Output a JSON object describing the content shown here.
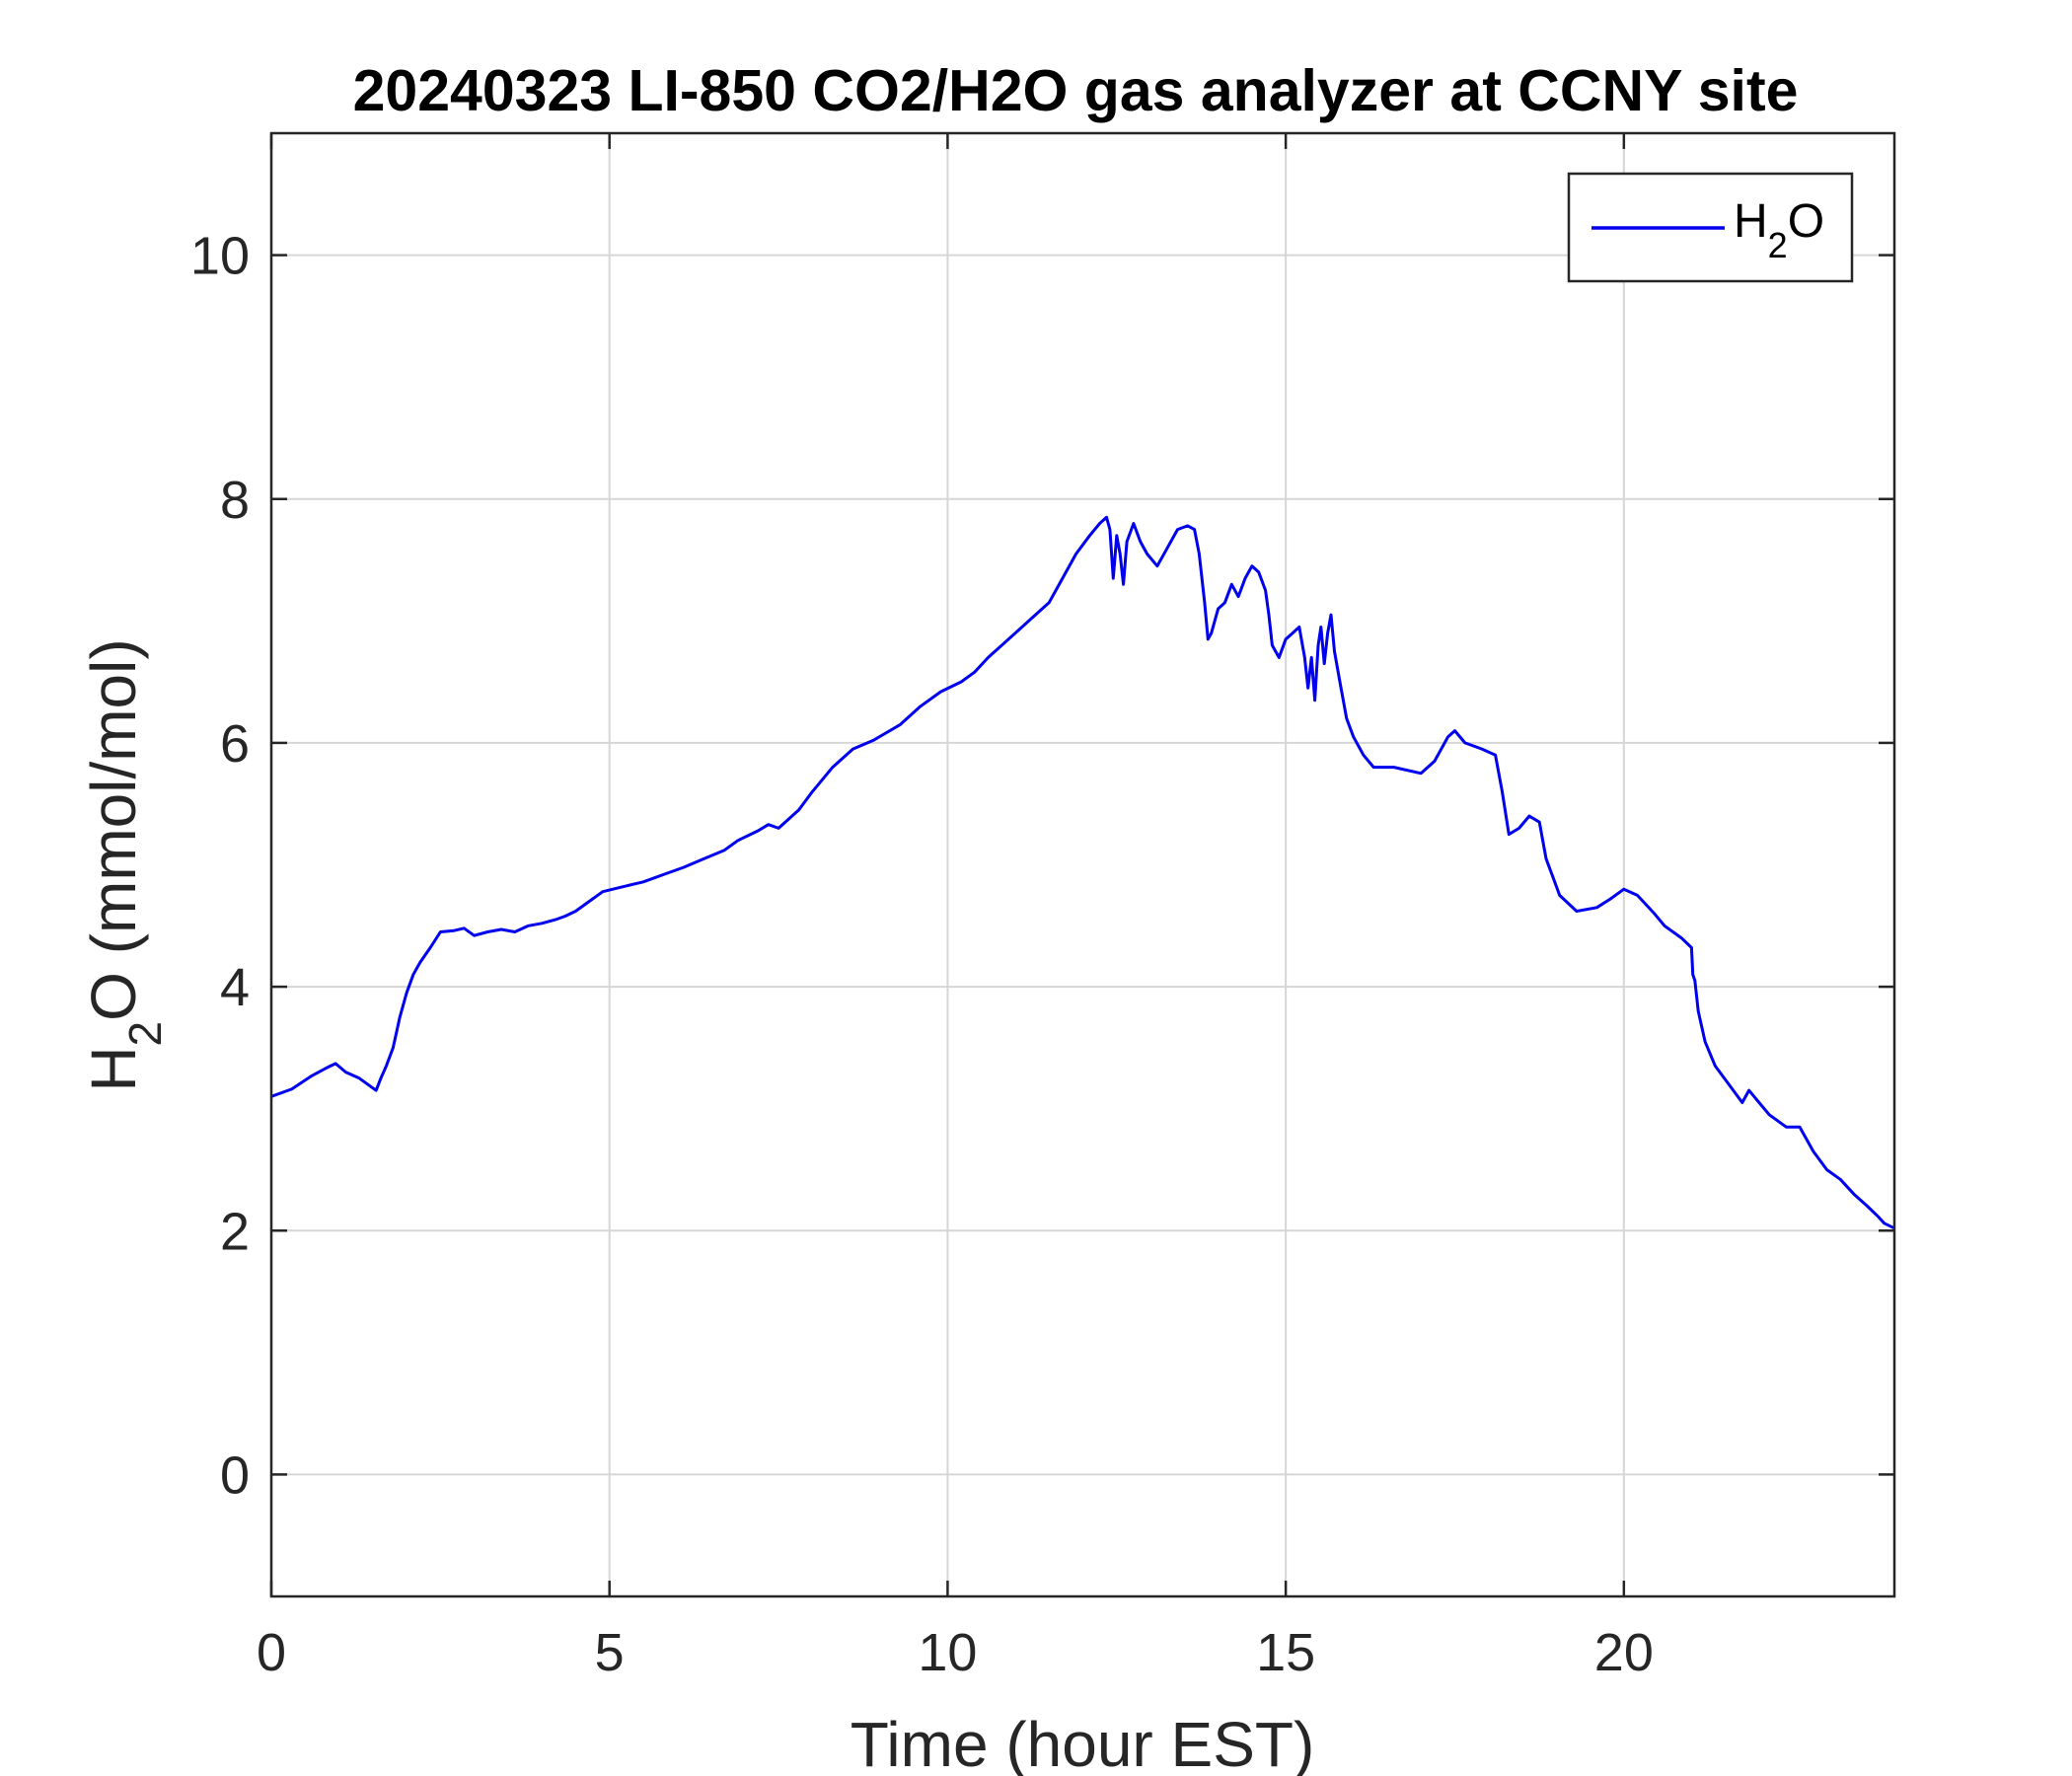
{
  "chart_data": {
    "type": "line",
    "title": "20240323 LI-850 CO2/H2O gas analyzer at CCNY site",
    "xlabel": "Time (hour EST)",
    "ylabel": {
      "main": "H",
      "sub": "2",
      "rest": "O (mmol/mol)"
    },
    "xlim": [
      0,
      24
    ],
    "ylim": [
      -1,
      11
    ],
    "xticks": [
      0,
      5,
      10,
      15,
      20
    ],
    "xtick_labels": [
      "0",
      "5",
      "10",
      "15",
      "20"
    ],
    "yticks": [
      0,
      2,
      4,
      6,
      8,
      10
    ],
    "ytick_labels": [
      "0",
      "2",
      "4",
      "6",
      "8",
      "10"
    ],
    "grid": true,
    "legend_position": "top-right",
    "series": [
      {
        "name": "H2O",
        "legend_label": {
          "main": "H",
          "sub": "2",
          "rest": "O"
        },
        "color": "#0000ee",
        "x": [
          0,
          0.3,
          0.6,
          0.8,
          0.95,
          1.1,
          1.3,
          1.5,
          1.55,
          1.62,
          1.7,
          1.8,
          1.9,
          2.0,
          2.1,
          2.2,
          2.35,
          2.5,
          2.7,
          2.85,
          3.0,
          3.2,
          3.4,
          3.6,
          3.8,
          4.0,
          4.2,
          4.35,
          4.5,
          4.7,
          4.9,
          5.2,
          5.5,
          5.8,
          6.1,
          6.4,
          6.7,
          6.9,
          7.2,
          7.35,
          7.5,
          7.8,
          8.0,
          8.3,
          8.6,
          8.9,
          9.3,
          9.6,
          9.9,
          10.2,
          10.4,
          10.6,
          10.9,
          11.2,
          11.5,
          11.7,
          11.9,
          12.1,
          12.25,
          12.35,
          12.4,
          12.45,
          12.5,
          12.55,
          12.6,
          12.65,
          12.75,
          12.85,
          12.95,
          13.1,
          13.25,
          13.4,
          13.55,
          13.65,
          13.72,
          13.8,
          13.85,
          13.9,
          14.0,
          14.1,
          14.2,
          14.3,
          14.4,
          14.5,
          14.6,
          14.7,
          14.75,
          14.8,
          14.9,
          15.0,
          15.1,
          15.2,
          15.28,
          15.33,
          15.38,
          15.43,
          15.48,
          15.52,
          15.57,
          15.62,
          15.67,
          15.72,
          15.8,
          15.9,
          16.0,
          16.15,
          16.3,
          16.6,
          17.0,
          17.2,
          17.4,
          17.5,
          17.65,
          17.9,
          18.1,
          18.2,
          18.3,
          18.45,
          18.6,
          18.75,
          18.85,
          18.95,
          19.05,
          19.3,
          19.6,
          19.8,
          20.0,
          20.2,
          20.45,
          20.6,
          20.85,
          21.0,
          21.02,
          21.05,
          21.1,
          21.2,
          21.35,
          21.55,
          21.75,
          21.85,
          22.0,
          22.15,
          22.4,
          22.6,
          22.8,
          23.0,
          23.2,
          23.4,
          23.6,
          23.75,
          23.85,
          24.0
        ],
        "y": [
          3.1,
          3.16,
          3.27,
          3.33,
          3.37,
          3.3,
          3.25,
          3.17,
          3.15,
          3.25,
          3.35,
          3.5,
          3.75,
          3.95,
          4.1,
          4.2,
          4.32,
          4.45,
          4.46,
          4.48,
          4.42,
          4.45,
          4.47,
          4.45,
          4.5,
          4.52,
          4.55,
          4.58,
          4.62,
          4.7,
          4.78,
          4.82,
          4.86,
          4.92,
          4.98,
          5.05,
          5.12,
          5.2,
          5.28,
          5.33,
          5.3,
          5.45,
          5.6,
          5.8,
          5.95,
          6.02,
          6.15,
          6.3,
          6.42,
          6.5,
          6.58,
          6.7,
          6.85,
          7.0,
          7.15,
          7.35,
          7.55,
          7.7,
          7.8,
          7.85,
          7.75,
          7.35,
          7.7,
          7.55,
          7.3,
          7.65,
          7.8,
          7.65,
          7.55,
          7.45,
          7.6,
          7.75,
          7.78,
          7.75,
          7.55,
          7.15,
          6.85,
          6.9,
          7.1,
          7.15,
          7.3,
          7.2,
          7.35,
          7.45,
          7.4,
          7.25,
          7.05,
          6.8,
          6.7,
          6.85,
          6.9,
          6.95,
          6.7,
          6.45,
          6.7,
          6.35,
          6.8,
          6.95,
          6.65,
          6.9,
          7.05,
          6.75,
          6.5,
          6.2,
          6.05,
          5.9,
          5.8,
          5.8,
          5.75,
          5.85,
          6.05,
          6.1,
          6.0,
          5.95,
          5.9,
          5.6,
          5.25,
          5.3,
          5.4,
          5.35,
          5.05,
          4.9,
          4.75,
          4.62,
          4.65,
          4.72,
          4.8,
          4.75,
          4.6,
          4.5,
          4.4,
          4.32,
          4.1,
          4.05,
          3.8,
          3.55,
          3.35,
          3.2,
          3.05,
          3.15,
          3.05,
          2.95,
          2.85,
          2.85,
          2.65,
          2.5,
          2.42,
          2.3,
          2.2,
          2.12,
          2.06,
          2.02
        ]
      }
    ]
  }
}
